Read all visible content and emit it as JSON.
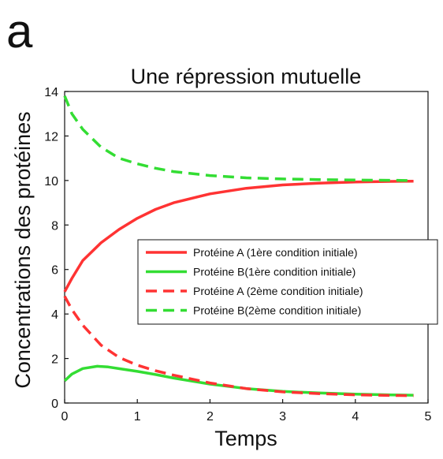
{
  "panel_label": "a",
  "chart_data": {
    "type": "line",
    "title": "Une répression mutuelle",
    "xlabel": "Temps",
    "ylabel": "Concentrations des protéines",
    "xlim": [
      0,
      5
    ],
    "ylim": [
      0,
      14
    ],
    "xticks": [
      0,
      1,
      2,
      3,
      4,
      5
    ],
    "yticks": [
      0,
      2,
      4,
      6,
      8,
      10,
      12,
      14
    ],
    "grid": false,
    "legend_position": "center-right",
    "series": [
      {
        "name": "Protéine A (1ère condition initiale)",
        "color": "#ff3333",
        "dash": "solid",
        "x": [
          0,
          0.1,
          0.25,
          0.5,
          0.75,
          1,
          1.25,
          1.5,
          2,
          2.5,
          3,
          3.5,
          4,
          4.5,
          4.8
        ],
        "y": [
          5.0,
          5.6,
          6.4,
          7.2,
          7.8,
          8.3,
          8.7,
          9.0,
          9.4,
          9.65,
          9.8,
          9.88,
          9.93,
          9.96,
          9.97
        ]
      },
      {
        "name": "Protéine B(1ère condition initiale)",
        "color": "#33dd33",
        "dash": "solid",
        "x": [
          0,
          0.1,
          0.25,
          0.45,
          0.6,
          0.8,
          1,
          1.25,
          1.5,
          2,
          2.5,
          3,
          3.5,
          4,
          4.5,
          4.8
        ],
        "y": [
          1.0,
          1.3,
          1.55,
          1.65,
          1.62,
          1.52,
          1.42,
          1.28,
          1.12,
          0.85,
          0.65,
          0.52,
          0.45,
          0.4,
          0.36,
          0.35
        ]
      },
      {
        "name": "Protéine A (2ème condition initiale)",
        "color": "#ff3333",
        "dash": "dashed",
        "x": [
          0,
          0.1,
          0.25,
          0.5,
          0.75,
          1,
          1.25,
          1.5,
          2,
          2.5,
          3,
          3.5,
          4,
          4.5,
          4.8
        ],
        "y": [
          4.8,
          4.2,
          3.5,
          2.6,
          2.05,
          1.7,
          1.45,
          1.25,
          0.9,
          0.65,
          0.5,
          0.42,
          0.37,
          0.34,
          0.33
        ]
      },
      {
        "name": "Protéine B(2ème condition initiale)",
        "color": "#33dd33",
        "dash": "dashed",
        "x": [
          0,
          0.1,
          0.25,
          0.5,
          0.75,
          1,
          1.25,
          1.5,
          2,
          2.5,
          3,
          3.5,
          4,
          4.5,
          4.8
        ],
        "y": [
          13.8,
          13.0,
          12.3,
          11.5,
          11.0,
          10.75,
          10.55,
          10.4,
          10.22,
          10.12,
          10.07,
          10.04,
          10.02,
          10.01,
          10.0
        ]
      }
    ]
  }
}
